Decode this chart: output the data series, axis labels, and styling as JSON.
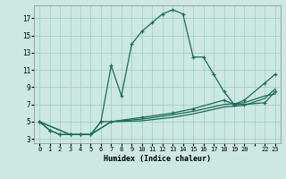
{
  "xlabel": "Humidex (Indice chaleur)",
  "bg_color": "#cce8e0",
  "line_color": "#1a6b5a",
  "grid_color": "#99cccc",
  "xlim": [
    -0.5,
    23.5
  ],
  "ylim": [
    2.5,
    18.5
  ],
  "xtick_pos": [
    0,
    1,
    2,
    3,
    4,
    5,
    6,
    7,
    8,
    9,
    10,
    11,
    12,
    13,
    14,
    15,
    16,
    17,
    18,
    19,
    20,
    21,
    22,
    23
  ],
  "xtick_labels": [
    "0",
    "1",
    "2",
    "3",
    "4",
    "5",
    "6",
    "7",
    "8",
    "9",
    "10",
    "11",
    "12",
    "13",
    "14",
    "15",
    "16",
    "17",
    "18",
    "19",
    "20",
    "",
    "22",
    "23"
  ],
  "yticks": [
    3,
    5,
    7,
    9,
    11,
    13,
    15,
    17
  ],
  "x_main": [
    0,
    1,
    2,
    3,
    4,
    5,
    6,
    7,
    8,
    9,
    10,
    11,
    12,
    13,
    14,
    15,
    16,
    17,
    18,
    19,
    20,
    22,
    23
  ],
  "y_main": [
    5,
    4,
    3.5,
    3.5,
    3.5,
    3.5,
    5.0,
    11.5,
    8.0,
    14.0,
    15.5,
    16.5,
    17.5,
    18.0,
    17.5,
    12.5,
    12.5,
    10.5,
    8.5,
    7.0,
    7.5,
    9.5,
    10.5
  ],
  "x_low1": [
    0,
    1,
    2,
    3,
    4,
    5,
    6,
    7,
    10,
    13,
    15,
    18,
    19,
    20,
    22,
    23
  ],
  "y_low1": [
    5,
    4,
    3.5,
    3.5,
    3.5,
    3.5,
    5.0,
    5.0,
    5.5,
    6.0,
    6.5,
    7.5,
    7.0,
    7.0,
    7.2,
    8.5
  ],
  "x_low2": [
    0,
    3,
    5,
    7,
    10,
    13,
    15,
    18,
    20,
    22,
    23
  ],
  "y_low2": [
    5,
    3.5,
    3.5,
    5.0,
    5.3,
    5.8,
    6.2,
    7.0,
    7.2,
    8.0,
    8.2
  ],
  "x_low3": [
    0,
    3,
    5,
    7,
    10,
    13,
    15,
    18,
    20,
    22,
    23
  ],
  "y_low3": [
    5,
    3.5,
    3.5,
    5.0,
    5.1,
    5.5,
    5.9,
    6.7,
    6.9,
    7.7,
    8.8
  ]
}
